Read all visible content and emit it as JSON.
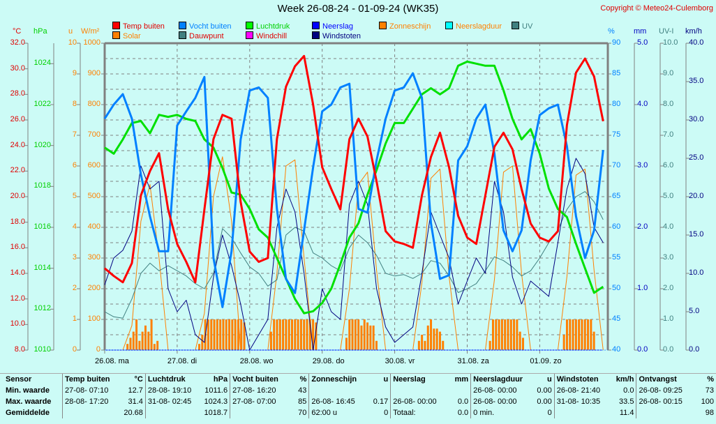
{
  "header": {
    "title": "Week 26-08-24 - 01-09-24 (WK35)",
    "copyright": "Copyright © Meteo24-Culemborg"
  },
  "legend": [
    {
      "label": "Temp buiten",
      "color": "#ff0000",
      "text_color": "#e00000"
    },
    {
      "label": "Solar",
      "color": "#ff8000",
      "text_color": "#ff8000"
    },
    {
      "label": "Vocht buiten",
      "color": "#0080ff",
      "text_color": "#0080ff"
    },
    {
      "label": "Dauwpunt",
      "color": "#408080",
      "text_color": "#e00000"
    },
    {
      "label": "Luchtdruk",
      "color": "#00ff00",
      "text_color": "#00d000"
    },
    {
      "label": "Windchill",
      "color": "#ff00ff",
      "text_color": "#e00000"
    },
    {
      "label": "Neerslag",
      "color": "#0000ff",
      "text_color": "#0000ff"
    },
    {
      "label": "Windstoten",
      "color": "#000080",
      "text_color": "#000080"
    },
    {
      "label": "Zonneschijn",
      "color": "#ff8000",
      "text_color": "#ff8000"
    },
    {
      "label": "Neerslagduur",
      "color": "#00ffff",
      "text_color": "#ff8000"
    },
    {
      "label": "UV",
      "color": "#408080",
      "text_color": "#408080"
    }
  ],
  "axes": {
    "temp": {
      "unit": "°C",
      "color": "#e00000",
      "ticks": [
        "32.0",
        "30.0",
        "28.0",
        "26.0",
        "24.0",
        "22.0",
        "20.0",
        "18.0",
        "16.0",
        "14.0",
        "12.0",
        "10.0",
        "8.0"
      ],
      "range": [
        8,
        32
      ]
    },
    "pressure": {
      "unit": "hPa",
      "color": "#00d000",
      "ticks": [
        "1024",
        "1022",
        "1020",
        "1018",
        "1016",
        "1014",
        "1012",
        "1010"
      ],
      "range": [
        1010,
        1025
      ]
    },
    "sun_hours": {
      "unit": "u",
      "color": "#ff8000",
      "ticks": [
        "10",
        "9",
        "8",
        "7",
        "6",
        "5",
        "4",
        "3",
        "2",
        "1",
        "0"
      ],
      "range": [
        0,
        10
      ]
    },
    "solar": {
      "unit": "W/m²",
      "color": "#ff8000",
      "ticks": [
        "1000",
        "900",
        "800",
        "700",
        "600",
        "500",
        "400",
        "300",
        "200",
        "100",
        "0"
      ],
      "range": [
        0,
        1000
      ]
    },
    "humidity": {
      "unit": "%",
      "color": "#0080ff",
      "ticks": [
        "90",
        "85",
        "80",
        "75",
        "70",
        "65",
        "60",
        "55",
        "50",
        "45",
        "40"
      ],
      "range": [
        40,
        90
      ]
    },
    "rain": {
      "unit": "mm",
      "color": "#0000c0",
      "ticks": [
        "5.0",
        "4.0",
        "3.0",
        "2.0",
        "1.0",
        "0.0"
      ],
      "range": [
        0,
        5
      ]
    },
    "uv": {
      "unit": "UV-I",
      "color": "#408080",
      "ticks": [
        "10.0",
        "9.0",
        "8.0",
        "7.0",
        "6.0",
        "5.0",
        "4.0",
        "3.0",
        "2.0",
        "1.0",
        "0.0"
      ],
      "range": [
        0,
        10
      ]
    },
    "wind": {
      "unit": "km/h",
      "color": "#000080",
      "ticks": [
        "40.0",
        "35.0",
        "30.0",
        "25.0",
        "20.0",
        "15.0",
        "10.0",
        "5.0",
        "0.0"
      ],
      "range": [
        0,
        40
      ]
    }
  },
  "chart_data": {
    "type": "line",
    "title": "Week 26-08-24 - 01-09-24 (WK35)",
    "xlabel": "",
    "x_unit": "days since 26.08 00:00",
    "x_range": [
      0,
      6.94
    ],
    "categories": [
      "26.08. ma",
      "27.08. di",
      "28.08. wo",
      "29.08. do",
      "30.08. vr",
      "31.08. za",
      "01.09. zo"
    ],
    "grid": true,
    "legend_position": "top",
    "series": [
      {
        "name": "Temp buiten",
        "axis": "temp",
        "color": "#ff0000",
        "width": 3,
        "step_days": 0.125,
        "values": [
          14.4,
          13.8,
          13.3,
          14.8,
          20.1,
          22.0,
          23.4,
          19.0,
          16.3,
          14.9,
          13.3,
          19.0,
          24.5,
          26.4,
          26.1,
          19.6,
          15.7,
          14.9,
          15.2,
          24.5,
          28.6,
          30.2,
          31.0,
          27.2,
          22.3,
          20.6,
          19.0,
          24.5,
          26.1,
          24.7,
          21.2,
          17.3,
          16.5,
          16.3,
          16.0,
          20.1,
          23.1,
          25.0,
          22.3,
          18.5,
          16.8,
          16.3,
          20.1,
          23.9,
          25.0,
          23.7,
          20.6,
          17.9,
          16.8,
          16.5,
          17.3,
          25.6,
          29.7,
          30.8,
          29.4,
          25.9
        ]
      },
      {
        "name": "Vocht buiten",
        "axis": "humidity",
        "color": "#0080ff",
        "width": 3,
        "step_days": 0.125,
        "values": [
          77.7,
          80,
          81.7,
          77.7,
          68.6,
          61.8,
          56.1,
          56.1,
          76.6,
          78.9,
          81.1,
          84.5,
          55,
          47,
          56.1,
          74.3,
          82.3,
          82.8,
          81.1,
          63,
          51.6,
          49.3,
          59.5,
          69.8,
          78.9,
          80,
          82.8,
          83.4,
          63,
          62.4,
          70.9,
          77.7,
          82.3,
          82.8,
          85.1,
          81.1,
          60.7,
          51.6,
          52.2,
          70.9,
          73.2,
          77.7,
          80,
          72,
          59.5,
          56.1,
          59.5,
          70.9,
          78.3,
          79.4,
          80,
          73.2,
          61.8,
          55,
          59.5,
          72.6
        ]
      },
      {
        "name": "Luchtdruk",
        "axis": "pressure",
        "color": "#00e000",
        "width": 3,
        "step_days": 0.125,
        "values": [
          1019.9,
          1019.6,
          1020.3,
          1021.1,
          1021.2,
          1020.6,
          1021.5,
          1021.4,
          1021.5,
          1021.3,
          1021.2,
          1020.3,
          1019.9,
          1018.9,
          1017.7,
          1017.6,
          1016.9,
          1015.9,
          1015.5,
          1014.5,
          1013.5,
          1012.5,
          1011.8,
          1011.9,
          1012.3,
          1013.0,
          1014.2,
          1015.5,
          1016.2,
          1017.6,
          1018.8,
          1020.1,
          1021.1,
          1021.1,
          1021.8,
          1022.5,
          1022.8,
          1022.5,
          1022.8,
          1023.9,
          1024.1,
          1024.0,
          1023.9,
          1023.9,
          1022.7,
          1021.3,
          1020.3,
          1020.8,
          1019.6,
          1017.9,
          1016.9,
          1016.5,
          1015.2,
          1014.0,
          1012.8,
          1013.1
        ]
      },
      {
        "name": "Solar",
        "axis": "solar",
        "color": "#ff8000",
        "width": 1,
        "step_days": 0.125,
        "values": [
          0,
          0,
          0,
          80,
          420,
          540,
          300,
          0,
          0,
          0,
          0,
          120,
          500,
          630,
          420,
          0,
          0,
          0,
          0,
          250,
          600,
          620,
          300,
          0,
          0,
          0,
          0,
          200,
          540,
          580,
          260,
          0,
          0,
          0,
          0,
          220,
          560,
          590,
          240,
          0,
          0,
          0,
          0,
          230,
          580,
          600,
          250,
          0,
          0,
          0,
          0,
          240,
          570,
          590,
          260,
          0
        ]
      },
      {
        "name": "Dauwpunt",
        "axis": "temp",
        "color": "#408080",
        "width": 1,
        "step_days": 0.125,
        "values": [
          11.0,
          10.6,
          10.5,
          12.0,
          14.0,
          14.8,
          14.2,
          14.6,
          14.2,
          13.8,
          13.2,
          12.8,
          14.0,
          17.5,
          16.8,
          15.6,
          14.5,
          14.0,
          13.0,
          13.5,
          17.0,
          17.6,
          17.3,
          15.6,
          15.2,
          14.6,
          14.2,
          16.0,
          17.0,
          16.4,
          15.4,
          14.0,
          13.8,
          13.9,
          13.6,
          14.0,
          15.0,
          14.8,
          13.8,
          12.5,
          12.8,
          13.2,
          14.2,
          15.3,
          15.0,
          14.5,
          13.8,
          14.2,
          15.2,
          16.4,
          17.4,
          19.0,
          20.0,
          20.4,
          19.6,
          18.2
        ]
      },
      {
        "name": "Windstoten",
        "axis": "wind",
        "color": "#000080",
        "width": 1,
        "step_days": 0.125,
        "values": [
          8.5,
          12.0,
          13.0,
          15.5,
          24.0,
          21.0,
          22.0,
          8.0,
          5.0,
          6.5,
          2.0,
          1.0,
          9.5,
          15.0,
          11.0,
          6.0,
          0.0,
          2.0,
          4.0,
          16.0,
          21.0,
          18.0,
          10.0,
          0.0,
          8.0,
          5.0,
          4.0,
          19.0,
          22.0,
          19.0,
          8.0,
          3.0,
          1.0,
          2.0,
          3.0,
          10.0,
          18.0,
          15.0,
          12.0,
          6.0,
          9.0,
          12.0,
          10.0,
          22.0,
          18.0,
          9.5,
          6.0,
          9.0,
          8.0,
          7.0,
          14.0,
          21.0,
          25.0,
          23.0,
          16.0,
          14.0
        ]
      },
      {
        "name": "Neerslag",
        "axis": "rain",
        "color": "#0000ff",
        "width": 1,
        "step_days": 0.125,
        "values": [
          0,
          0,
          0,
          0,
          0,
          0,
          0,
          0,
          0,
          0,
          0,
          0,
          0,
          0,
          0,
          0,
          0,
          0,
          0,
          0,
          0,
          0,
          0,
          0,
          0,
          0,
          0,
          0,
          0,
          0,
          0,
          0,
          0,
          0,
          0,
          0,
          0,
          0,
          0,
          0,
          0,
          0,
          0,
          0,
          0,
          0,
          0,
          0,
          0,
          0,
          0,
          0,
          0,
          0,
          0,
          0
        ]
      }
    ],
    "bars": {
      "name": "Zonneschijn",
      "axis": "sun_hours",
      "color": "#ff8000",
      "days": [
        {
          "start": 0.3,
          "values": [
            0.2,
            0.4,
            0.6,
            1.0,
            0.3,
            0.6,
            0.8,
            0.6,
            1.0,
            0.2,
            0.3
          ]
        },
        {
          "start": 1.29,
          "values": [
            0.2,
            0.5,
            1,
            1,
            1,
            1,
            1,
            1,
            1,
            1,
            1,
            1,
            1,
            1,
            1,
            0.9
          ]
        },
        {
          "start": 2.28,
          "values": [
            0.6,
            1,
            1,
            1,
            1,
            1,
            1,
            1,
            1,
            1,
            1,
            1,
            1,
            1,
            1,
            0.9
          ]
        },
        {
          "start": 3.32,
          "values": [
            0.4,
            1,
            1,
            1,
            1,
            0.8,
            1,
            0.9,
            0.8,
            0.8,
            0.3
          ]
        },
        {
          "start": 4.32,
          "values": [
            0.3,
            0.5,
            0.3,
            0.8,
            1,
            0.7,
            0.7,
            0.6,
            0.3
          ]
        },
        {
          "start": 5.3,
          "values": [
            0.3,
            1,
            1,
            1,
            1,
            1,
            1,
            1,
            1,
            1,
            0.6,
            0.4
          ]
        },
        {
          "start": 6.32,
          "values": [
            0.5,
            1,
            1,
            1,
            1,
            1,
            1,
            1,
            1,
            1,
            0.6
          ]
        }
      ]
    },
    "ylabel": "",
    "ylim": [
      8,
      32
    ]
  },
  "stats": {
    "header": [
      "Sensor",
      "Temp buiten",
      "°C",
      "Luchtdruk",
      "hPa",
      "Vocht buiten",
      "%",
      "Zonneschijn",
      "u",
      "Neerslag",
      "mm",
      "Neerslagduur",
      "u",
      "Windstoten",
      "km/h",
      "Ontvangst",
      "%"
    ],
    "rows": [
      {
        "label": "Min. waarde",
        "cells": [
          "27-08-  07:10",
          "12.7",
          "28-08-  19:10",
          "1011.6",
          "27-08-  16:20",
          "43",
          "",
          "",
          "",
          "",
          "26-08-  00:00",
          "0.00",
          "26-08-  21:40",
          "0.0",
          "26-08-  09:25",
          "73"
        ]
      },
      {
        "label": "Max. waarde",
        "cells": [
          "28-08-  17:20",
          "31.4",
          "31-08-  02:45",
          "1024.3",
          "27-08-  07:00",
          "85",
          "26-08-  16:45",
          "0.17",
          "26-08-  00:00",
          "0.0",
          "26-08-  00:00",
          "0.00",
          "31-08-  10:35",
          "33.5",
          "26-08-  00:15",
          "100"
        ]
      },
      {
        "label": "Gemiddelde",
        "cells": [
          "",
          "20.68",
          "",
          "1018.7",
          "",
          "70",
          "62:00 u",
          "0",
          "Totaal:",
          "0.0",
          "0 min.",
          "0",
          "",
          "11.4",
          "",
          "98"
        ]
      }
    ]
  }
}
